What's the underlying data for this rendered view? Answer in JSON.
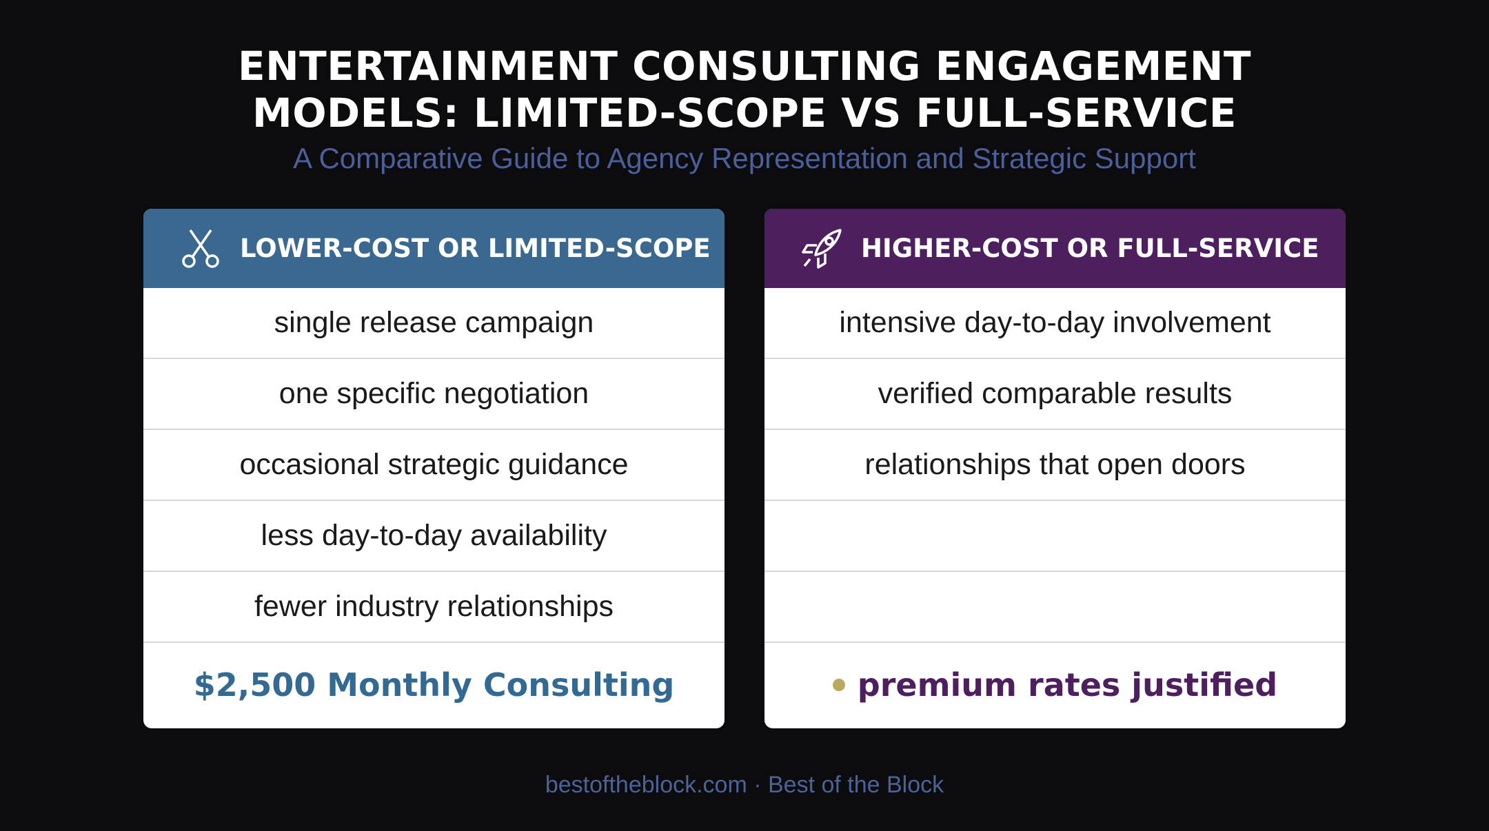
{
  "header": {
    "title_lines": [
      "ENTERTAINMENT CONSULTING ENGAGEMENT",
      "MODELS: LIMITED-SCOPE VS FULL-SERVICE"
    ],
    "subtitle": "A Comparative Guide to Agency Representation and Strategic Support"
  },
  "columns": [
    {
      "heading": "LOWER-COST OR LIMITED-SCOPE",
      "rows": [
        "single release campaign",
        "one specific negotiation",
        "occasional strategic guidance",
        "less day-to-day availability",
        "fewer industry relationships"
      ],
      "footer": "$2,500 Monthly Consulting"
    },
    {
      "heading": "HIGHER-COST OR FULL-SERVICE",
      "rows": [
        "intensive day-to-day involvement",
        "verified comparable results",
        "relationships that open doors"
      ],
      "footer": "premium rates justified"
    }
  ],
  "footer": "bestoftheblock.com · Best of the Block"
}
